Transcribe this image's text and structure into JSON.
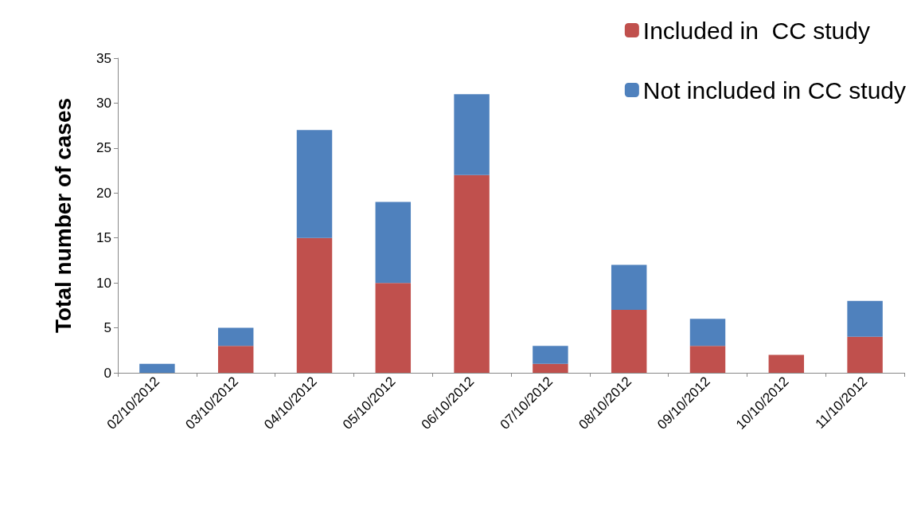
{
  "chart_data": {
    "type": "bar",
    "stacked": true,
    "ylabel": "Total number of cases",
    "categories": [
      "02/10/2012",
      "03/10/2012",
      "04/10/2012",
      "05/10/2012",
      "06/10/2012",
      "07/10/2012",
      "08/10/2012",
      "09/10/2012",
      "10/10/2012",
      "11/10/2012"
    ],
    "series": [
      {
        "name": "Included in  CC study",
        "color": "#c0504d",
        "values": [
          0,
          3,
          15,
          10,
          22,
          1,
          7,
          3,
          2,
          4
        ]
      },
      {
        "name": "Not included in CC study",
        "color": "#4f81bd",
        "values": [
          1,
          2,
          12,
          9,
          9,
          2,
          5,
          3,
          0,
          4
        ]
      }
    ],
    "ylim": [
      0,
      35
    ],
    "yticks": [
      0,
      5,
      10,
      15,
      20,
      25,
      30,
      35
    ],
    "grid": false,
    "legend": "top right"
  }
}
